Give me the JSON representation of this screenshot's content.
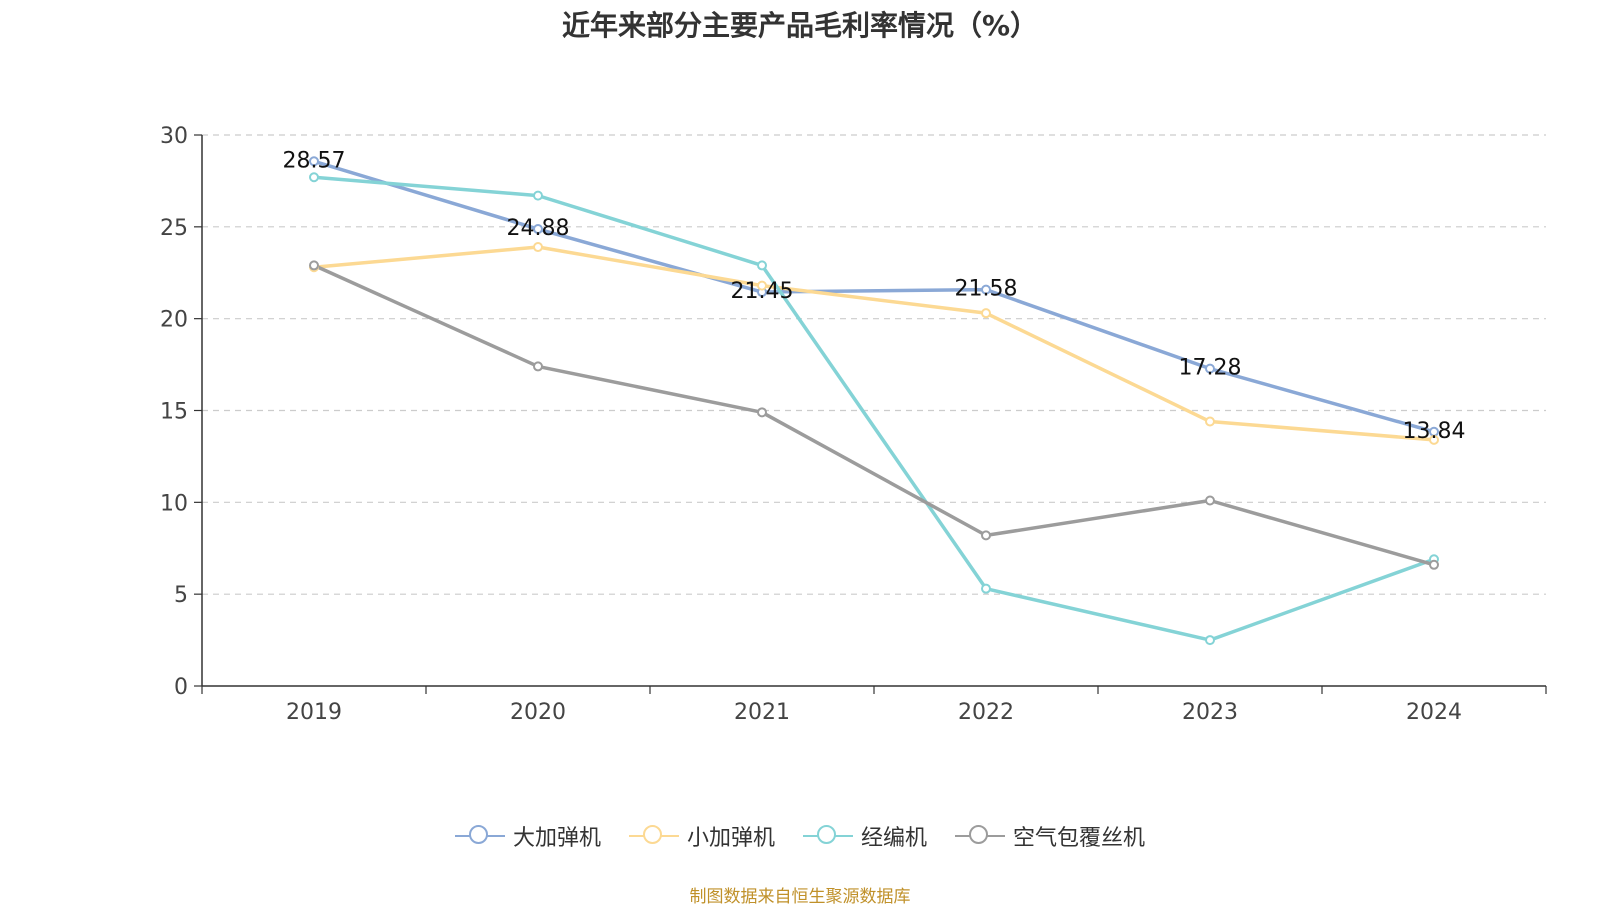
{
  "source_text": "制图数据来自恒生聚源数据库",
  "chart_data": {
    "type": "line",
    "title": "近年来部分主要产品毛利率情况（%）",
    "categories": [
      "2019",
      "2020",
      "2021",
      "2022",
      "2023",
      "2024"
    ],
    "ylim": [
      0,
      30
    ],
    "yticks": [
      0,
      5,
      10,
      15,
      20,
      25,
      30
    ],
    "grid": true,
    "legend_position": "bottom",
    "series": [
      {
        "name": "大加弹机",
        "color": "#8aa8d6",
        "values": [
          28.57,
          24.88,
          21.45,
          21.58,
          17.28,
          13.84
        ],
        "show_labels": true
      },
      {
        "name": "小加弹机",
        "color": "#fcd993",
        "values": [
          22.8,
          23.9,
          21.8,
          20.3,
          14.4,
          13.4
        ],
        "show_labels": false
      },
      {
        "name": "经编机",
        "color": "#84d3d6",
        "values": [
          27.7,
          26.7,
          22.9,
          5.3,
          2.5,
          6.9
        ],
        "show_labels": false
      },
      {
        "name": "空气包覆丝机",
        "color": "#9c9c9c",
        "values": [
          22.9,
          17.4,
          14.9,
          8.2,
          10.1,
          6.6
        ],
        "show_labels": false
      }
    ]
  }
}
